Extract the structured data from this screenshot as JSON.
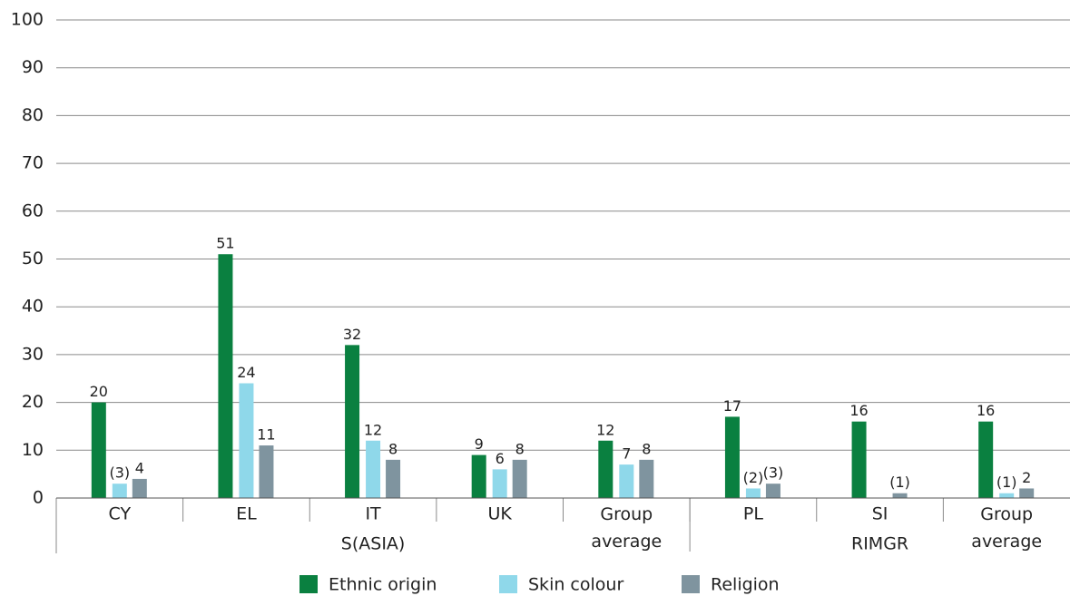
{
  "chart_data": {
    "type": "bar",
    "categories": [
      "CY",
      "EL",
      "IT",
      "UK",
      "Group average",
      "PL",
      "SI",
      "Group average"
    ],
    "groups": [
      {
        "name": "S(ASIA)",
        "count": 5
      },
      {
        "name": "RIMGR",
        "count": 3
      }
    ],
    "series": [
      {
        "name": "Ethnic origin",
        "color": "#0a8040",
        "values": [
          20,
          51,
          32,
          9,
          12,
          17,
          16,
          16
        ]
      },
      {
        "name": "Skin colour",
        "color": "#8fd8ea",
        "values": [
          3,
          24,
          12,
          6,
          7,
          2,
          null,
          1
        ],
        "value_labels": [
          "(3)",
          "24",
          "12",
          "6",
          "7",
          "(2)",
          null,
          "(1)"
        ]
      },
      {
        "name": "Religion",
        "color": "#7f949f",
        "values": [
          4,
          11,
          8,
          8,
          8,
          3,
          1,
          2
        ],
        "value_labels": [
          "4",
          "11",
          "8",
          "8",
          "8",
          "(3)",
          "(1)",
          "2"
        ]
      }
    ],
    "ylim": [
      0,
      100
    ],
    "yticks": [
      0,
      10,
      20,
      30,
      40,
      50,
      60,
      70,
      80,
      90,
      100
    ],
    "grid": true,
    "legend": "bottom"
  }
}
